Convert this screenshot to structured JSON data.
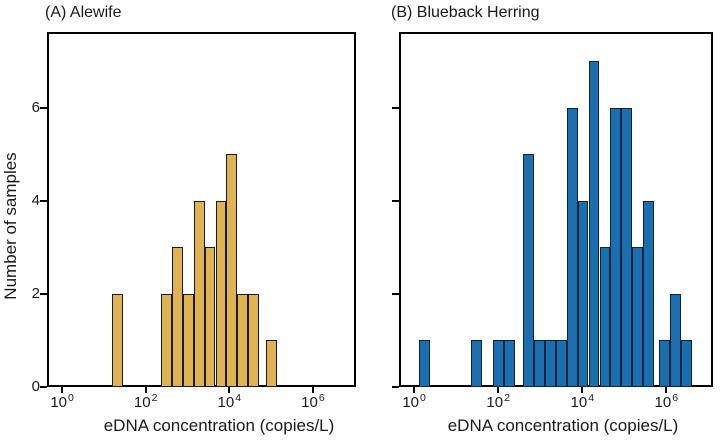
{
  "chart_data": [
    {
      "type": "histogram",
      "panel": "A",
      "title": "(A) Alewife",
      "series_name": "Alewife",
      "xlabel": "eDNA concentration (copies/L)",
      "ylabel": "Number of samples",
      "x_scale": "log10",
      "xlim_log10": [
        -0.36,
        7.03
      ],
      "ylim": [
        0,
        7.62
      ],
      "x_tick_exponents": [
        0,
        2,
        4,
        6
      ],
      "y_ticks": [
        0,
        2,
        4,
        6
      ],
      "show_y_tick_labels": true,
      "grid": false,
      "legend": "none",
      "bin_width_log10": 0.26,
      "bar_fill": "#DFB351",
      "bar_edge": "#1A1A1A",
      "bars": [
        {
          "log10_left": 1.2,
          "count": 2
        },
        {
          "log10_left": 2.37,
          "count": 2
        },
        {
          "log10_left": 2.63,
          "count": 3
        },
        {
          "log10_left": 2.89,
          "count": 2
        },
        {
          "log10_left": 3.15,
          "count": 4
        },
        {
          "log10_left": 3.41,
          "count": 3
        },
        {
          "log10_left": 3.67,
          "count": 4
        },
        {
          "log10_left": 3.93,
          "count": 5
        },
        {
          "log10_left": 4.19,
          "count": 2
        },
        {
          "log10_left": 4.45,
          "count": 2
        },
        {
          "log10_left": 4.88,
          "count": 1
        }
      ]
    },
    {
      "type": "histogram",
      "panel": "B",
      "title": "(B) Blueback Herring",
      "series_name": "Blueback Herring",
      "xlabel": "eDNA concentration (copies/L)",
      "ylabel": "Number of samples",
      "x_scale": "log10",
      "xlim_log10": [
        -0.36,
        7.11
      ],
      "ylim": [
        0,
        7.62
      ],
      "x_tick_exponents": [
        0,
        2,
        4,
        6
      ],
      "y_ticks": [
        0,
        2,
        4,
        6
      ],
      "show_y_tick_labels": false,
      "grid": false,
      "legend": "none",
      "bin_width_log10": 0.26,
      "bar_fill": "#1B6FAE",
      "bar_edge": "#10233B",
      "bars": [
        {
          "log10_left": 0.12,
          "count": 1
        },
        {
          "log10_left": 1.35,
          "count": 1
        },
        {
          "log10_left": 1.87,
          "count": 1
        },
        {
          "log10_left": 2.13,
          "count": 1
        },
        {
          "log10_left": 2.59,
          "count": 5
        },
        {
          "log10_left": 2.85,
          "count": 1
        },
        {
          "log10_left": 3.11,
          "count": 1
        },
        {
          "log10_left": 3.37,
          "count": 1
        },
        {
          "log10_left": 3.63,
          "count": 6
        },
        {
          "log10_left": 3.89,
          "count": 4
        },
        {
          "log10_left": 4.15,
          "count": 7
        },
        {
          "log10_left": 4.41,
          "count": 3
        },
        {
          "log10_left": 4.67,
          "count": 6
        },
        {
          "log10_left": 4.93,
          "count": 6
        },
        {
          "log10_left": 5.19,
          "count": 3
        },
        {
          "log10_left": 5.45,
          "count": 4
        },
        {
          "log10_left": 5.83,
          "count": 1
        },
        {
          "log10_left": 6.09,
          "count": 2
        },
        {
          "log10_left": 6.35,
          "count": 1
        }
      ]
    }
  ]
}
